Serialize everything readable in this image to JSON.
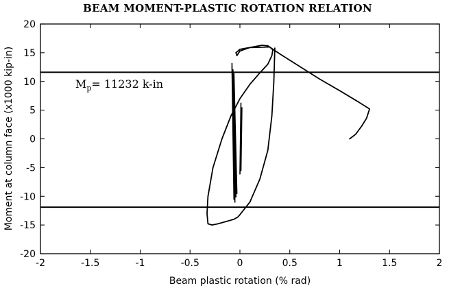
{
  "chart_data": {
    "type": "line",
    "title": "BEAM MOMENT-PLASTIC ROTATION RELATION",
    "xlabel": "Beam plastic rotation (% rad)",
    "ylabel": "Moment at column face (x1000 kip-in)",
    "xlim": [
      -2,
      2
    ],
    "ylim": [
      -20,
      20
    ],
    "x_ticks": [
      -2,
      -1.5,
      -1,
      -0.5,
      0,
      0.5,
      1,
      1.5,
      2
    ],
    "x_tick_labels": [
      "-2",
      "-1.5",
      "-1",
      "-0.5",
      "0",
      "0.5",
      "1",
      "1.5",
      "2"
    ],
    "y_ticks": [
      20,
      15,
      10,
      5,
      0,
      -5,
      -10,
      -15,
      -20
    ],
    "y_tick_labels": [
      "20",
      "15",
      "10",
      "5",
      "0",
      "-5",
      "-10",
      "-15",
      "-20"
    ],
    "grid": false,
    "reference_lines": [
      {
        "y": 11.6
      },
      {
        "y": -11.9
      }
    ],
    "annotation": {
      "text": "M",
      "subscript": "p",
      "rest": "= 11232 k-in",
      "x": -1.65,
      "y": 8.9
    },
    "series": [
      {
        "x": [
          0.35,
          0.34,
          0.32,
          0.28,
          0.2,
          0.1,
          0.0,
          -0.02,
          -0.06,
          -0.14,
          -0.22,
          -0.28,
          -0.32,
          -0.33,
          -0.32,
          -0.27,
          -0.18,
          -0.09,
          0.0,
          0.1,
          0.2,
          0.28,
          0.32,
          0.33,
          0.3,
          0.1,
          0.0,
          -0.04,
          -0.03,
          0.0,
          0.1,
          0.22,
          0.28,
          0.4,
          0.6,
          0.8,
          1.0,
          1.2,
          1.3,
          1.27,
          1.22,
          1.16,
          1.1
        ],
        "y": [
          15.8,
          10.0,
          4.0,
          -2.0,
          -7.0,
          -11.0,
          -13.2,
          -13.6,
          -14.0,
          -14.4,
          -14.8,
          -15.0,
          -14.8,
          -13.0,
          -10.0,
          -5.0,
          0.0,
          4.0,
          7.0,
          9.5,
          11.5,
          13.0,
          14.5,
          15.5,
          16.0,
          15.9,
          15.6,
          15.0,
          14.5,
          15.3,
          15.9,
          16.3,
          16.2,
          14.8,
          12.6,
          10.4,
          8.4,
          6.3,
          5.2,
          3.6,
          2.2,
          0.8,
          0.0
        ]
      },
      {
        "x": [
          -0.08,
          -0.06,
          -0.08,
          -0.05,
          -0.07,
          -0.04,
          -0.06,
          -0.03
        ],
        "y": [
          13.2,
          -10.6,
          12.6,
          -11.1,
          12.1,
          -10.2,
          11.4,
          -9.6
        ]
      },
      {
        "x": [
          0.01,
          0.0,
          0.02,
          0.01
        ],
        "y": [
          6.3,
          -6.2,
          5.5,
          -5.6
        ]
      }
    ]
  }
}
